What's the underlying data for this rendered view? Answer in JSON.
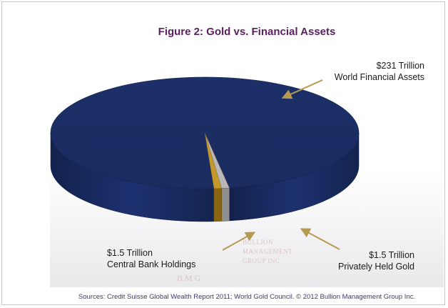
{
  "chart_data": {
    "type": "pie",
    "title": "Figure 2:  Gold vs. Financial Assets",
    "slices": [
      {
        "amount": "$231 Trillion",
        "label": "World Financial Assets",
        "value": 231,
        "color": "#1b2e63"
      },
      {
        "amount": "$1.5 Trillion",
        "label": "Central Bank Holdings",
        "value": 1.5,
        "color": "#a07a1c"
      },
      {
        "amount": "$1.5 Trillion",
        "label": "Privately Held Gold",
        "value": 1.5,
        "color": "#9a9a9a"
      }
    ],
    "units": "Trillion USD",
    "three_d": true
  },
  "watermark": {
    "line1": "BULLION",
    "line2": "MANAGEMENT",
    "line3": "GROUP INC.",
    "logo": "BMG"
  },
  "sources": "Sources:  Credit Suisse Global Wealth Report 2011; World Gold Council. © 2012 Bullion Management Group Inc."
}
